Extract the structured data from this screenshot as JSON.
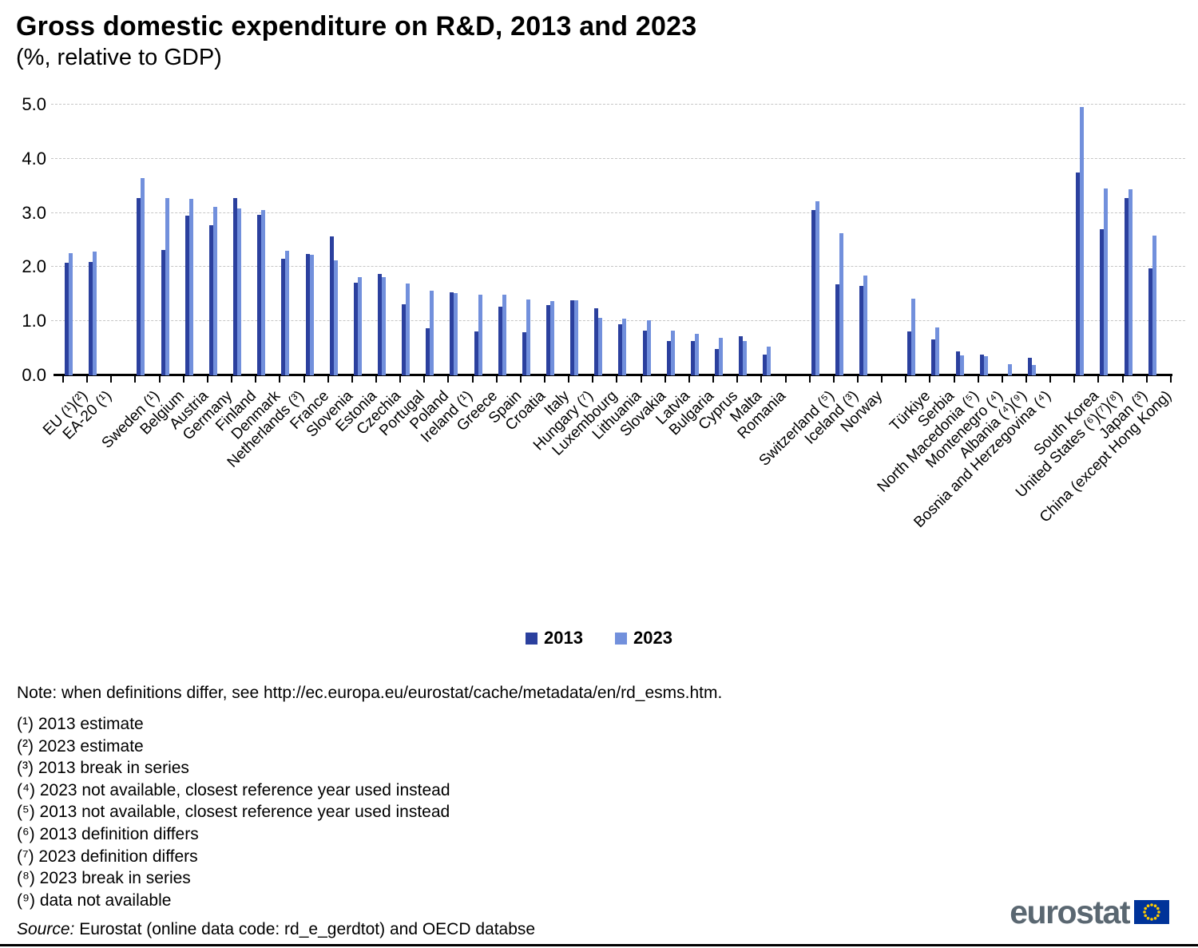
{
  "title": "Gross domestic expenditure on R&D, 2013 and 2023",
  "subtitle": "(%, relative to GDP)",
  "legend": {
    "items": [
      {
        "label": "2013",
        "color": "#2b409e"
      },
      {
        "label": "2023",
        "color": "#7290dc"
      }
    ]
  },
  "chart_data": {
    "type": "bar",
    "title": "Gross domestic expenditure on R&D, 2013 and 2023",
    "subtitle": "(%, relative to GDP)",
    "xlabel": "",
    "ylabel": "% of GDP",
    "ylim": [
      0,
      5
    ],
    "ytick_labels": [
      "0.0",
      "1.0",
      "2.0",
      "3.0",
      "4.0",
      "5.0"
    ],
    "grid": "horizontal dashed",
    "legend_position": "bottom center",
    "series_names": [
      "2013",
      "2023"
    ],
    "series_colors": [
      "#2b409e",
      "#7290dc"
    ],
    "gap_between_groups": 1,
    "categories": [
      {
        "label": "EU (¹)(²)",
        "group": "aggregates",
        "values": [
          2.08,
          2.26
        ]
      },
      {
        "label": "EA-20 (¹)",
        "group": "aggregates",
        "values": [
          2.1,
          2.29
        ]
      },
      {
        "label": "Sweden (¹)",
        "group": "eu-members",
        "values": [
          3.27,
          3.64
        ]
      },
      {
        "label": "Belgium",
        "group": "eu-members",
        "values": [
          2.32,
          3.27
        ]
      },
      {
        "label": "Austria",
        "group": "eu-members",
        "values": [
          2.95,
          3.26
        ]
      },
      {
        "label": "Germany",
        "group": "eu-members",
        "values": [
          2.77,
          3.11
        ]
      },
      {
        "label": "Finland",
        "group": "eu-members",
        "values": [
          3.28,
          3.08
        ]
      },
      {
        "label": "Denmark",
        "group": "eu-members",
        "values": [
          2.97,
          3.06
        ]
      },
      {
        "label": "Netherlands (³)",
        "group": "eu-members",
        "values": [
          2.15,
          2.3
        ]
      },
      {
        "label": "France",
        "group": "eu-members",
        "values": [
          2.24,
          2.22
        ]
      },
      {
        "label": "Slovenia",
        "group": "eu-members",
        "values": [
          2.56,
          2.12
        ]
      },
      {
        "label": "Estonia",
        "group": "eu-members",
        "values": [
          1.71,
          1.82
        ]
      },
      {
        "label": "Czechia",
        "group": "eu-members",
        "values": [
          1.88,
          1.82
        ]
      },
      {
        "label": "Portugal",
        "group": "eu-members",
        "values": [
          1.32,
          1.69
        ]
      },
      {
        "label": "Poland",
        "group": "eu-members",
        "values": [
          0.87,
          1.56
        ]
      },
      {
        "label": "Ireland (¹)",
        "group": "eu-members",
        "values": [
          1.54,
          1.52
        ]
      },
      {
        "label": "Greece",
        "group": "eu-members",
        "values": [
          0.81,
          1.49
        ]
      },
      {
        "label": "Spain",
        "group": "eu-members",
        "values": [
          1.27,
          1.49
        ]
      },
      {
        "label": "Croatia",
        "group": "eu-members",
        "values": [
          0.8,
          1.4
        ]
      },
      {
        "label": "Italy",
        "group": "eu-members",
        "values": [
          1.3,
          1.37
        ]
      },
      {
        "label": "Hungary (⁷)",
        "group": "eu-members",
        "values": [
          1.38,
          1.38
        ]
      },
      {
        "label": "Luxembourg",
        "group": "eu-members",
        "values": [
          1.24,
          1.06
        ]
      },
      {
        "label": "Lithuania",
        "group": "eu-members",
        "values": [
          0.95,
          1.04
        ]
      },
      {
        "label": "Slovakia",
        "group": "eu-members",
        "values": [
          0.82,
          1.02
        ]
      },
      {
        "label": "Latvia",
        "group": "eu-members",
        "values": [
          0.63,
          0.82
        ]
      },
      {
        "label": "Bulgaria",
        "group": "eu-members",
        "values": [
          0.63,
          0.77
        ]
      },
      {
        "label": "Cyprus",
        "group": "eu-members",
        "values": [
          0.48,
          0.69
        ]
      },
      {
        "label": "Malta",
        "group": "eu-members",
        "values": [
          0.73,
          0.64
        ]
      },
      {
        "label": "Romania",
        "group": "eu-members",
        "values": [
          0.39,
          0.53
        ]
      },
      {
        "label": "Switzerland (⁵)",
        "group": "efta",
        "values": [
          3.05,
          3.22
        ]
      },
      {
        "label": "Iceland (³)",
        "group": "efta",
        "values": [
          1.68,
          2.63
        ]
      },
      {
        "label": "Norway",
        "group": "efta",
        "values": [
          1.65,
          1.84
        ]
      },
      {
        "label": "Türkiye",
        "group": "candidates",
        "values": [
          0.81,
          1.41
        ]
      },
      {
        "label": "Serbia",
        "group": "candidates",
        "values": [
          0.66,
          0.89
        ]
      },
      {
        "label": "North Macedonia (⁵)",
        "group": "candidates",
        "values": [
          0.44,
          0.37
        ]
      },
      {
        "label": "Montenegro (⁴)",
        "group": "candidates",
        "values": [
          0.38,
          0.36
        ]
      },
      {
        "label": "Albania (⁴)(⁹)",
        "group": "candidates",
        "values": [
          null,
          0.2
        ]
      },
      {
        "label": "Bosnia and Herzegovina (⁴)",
        "group": "candidates",
        "values": [
          0.32,
          0.19
        ]
      },
      {
        "label": "South Korea",
        "group": "non-european",
        "values": [
          3.75,
          4.96
        ]
      },
      {
        "label": "United States (⁶)(⁷)(⁸)",
        "group": "non-european",
        "values": [
          2.7,
          3.45
        ]
      },
      {
        "label": "Japan (³)",
        "group": "non-european",
        "values": [
          3.28,
          3.44
        ]
      },
      {
        "label": "China (except Hong Kong)",
        "group": "non-european",
        "values": [
          1.97,
          2.58
        ]
      }
    ]
  },
  "notes": {
    "note": "Note: when definitions differ, see http://ec.europa.eu/eurostat/cache/metadata/en/rd_esms.htm.",
    "footnotes": [
      "(¹) 2013 estimate",
      "(²) 2023 estimate",
      "(³) 2013 break in series",
      "(⁴) 2023 not available, closest reference year used instead",
      "(⁵) 2013 not available, closest reference year used instead",
      "(⁶) 2013 definition differs",
      "(⁷) 2023 definition differs",
      "(⁸) 2023 break in series",
      "(⁹) data not available"
    ],
    "source_label": "Source:",
    "source_text": "Eurostat (online data code:  rd_e_gerdtot) and OECD databse"
  },
  "logo": {
    "text": "eurostat",
    "flag_blue": "#003399",
    "flag_star_color": "#ffcc00"
  }
}
